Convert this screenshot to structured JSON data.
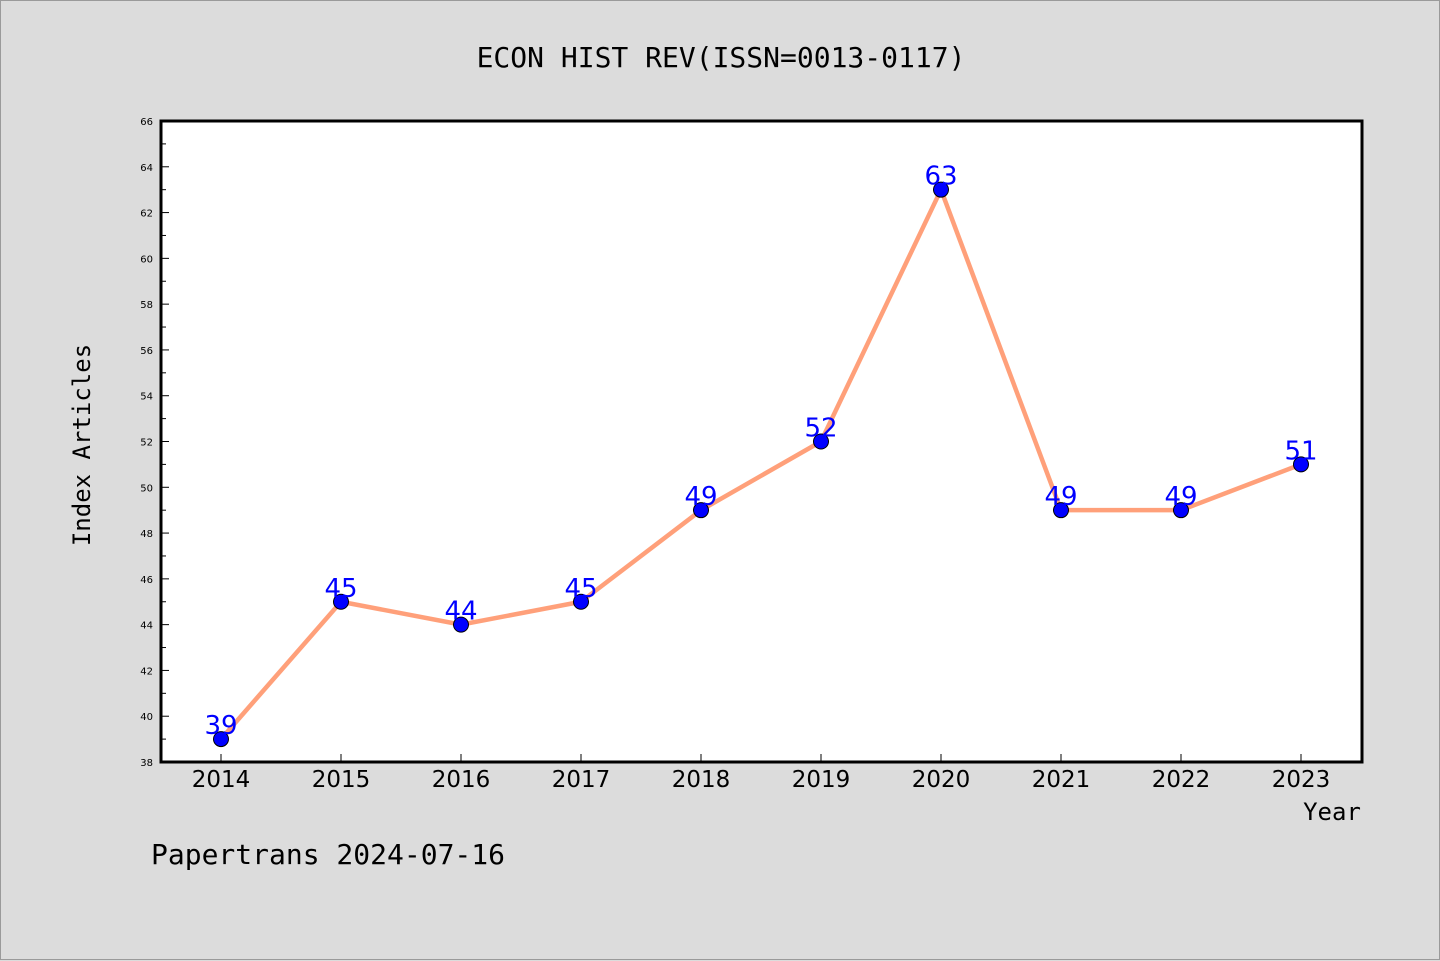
{
  "chart_data": {
    "type": "line",
    "title": "ECON HIST REV(ISSN=0013-0117)",
    "xlabel": "Year",
    "ylabel": "Index Articles",
    "categories": [
      "2014",
      "2015",
      "2016",
      "2017",
      "2018",
      "2019",
      "2020",
      "2021",
      "2022",
      "2023"
    ],
    "series": [
      {
        "values": [
          39,
          45,
          44,
          45,
          49,
          52,
          63,
          49,
          49,
          51
        ],
        "line_color": "#ffa07a",
        "marker_color": "#0000ff"
      }
    ],
    "ylim": [
      38,
      66
    ],
    "yticks": [
      38,
      40,
      42,
      44,
      46,
      48,
      50,
      52,
      54,
      56,
      58,
      60,
      62,
      64,
      66
    ],
    "grid": false,
    "data_labels": true,
    "label_color": "#0000ff"
  },
  "footer": {
    "text": "Papertrans 2024-07-16"
  }
}
